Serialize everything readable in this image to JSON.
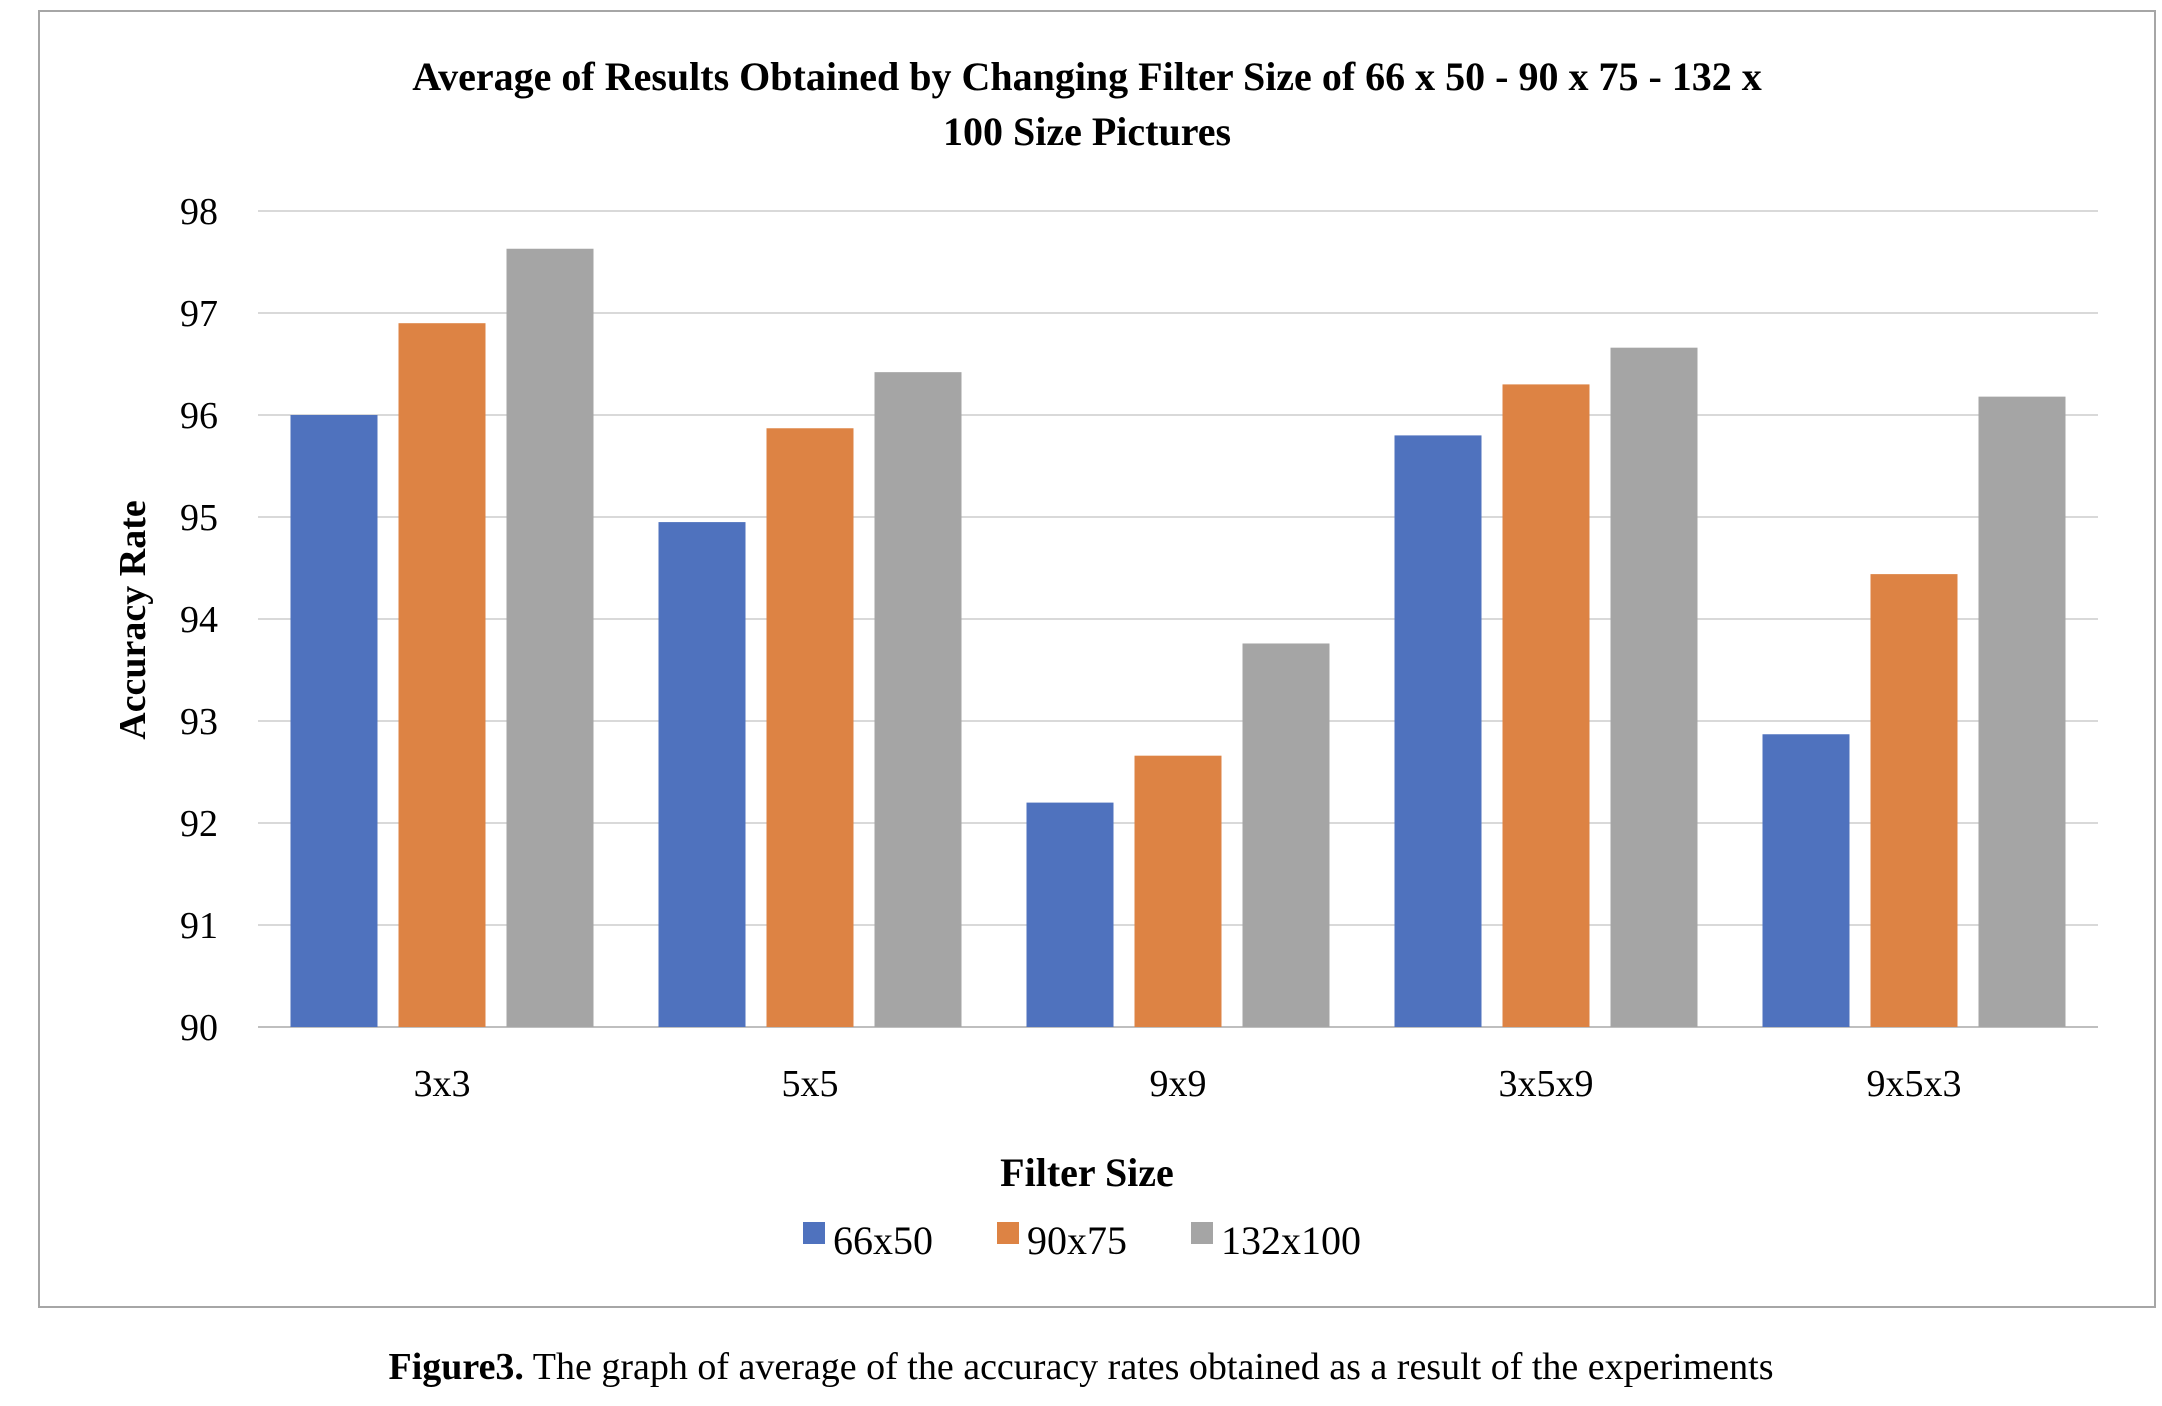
{
  "chart_data": {
    "type": "bar",
    "title": "Average of Results Obtained by Changing Filter Size of 66 x 50 -  90 x 75 - 132 x 100 Size Pictures",
    "title_lines": [
      "Average of Results Obtained by Changing Filter Size of 66 x 50 -  90 x 75 - 132 x",
      "100 Size Pictures"
    ],
    "xlabel": "Filter Size",
    "ylabel": "Accuracy Rate",
    "categories": [
      "3x3",
      "5x5",
      "9x9",
      "3x5x9",
      "9x5x3"
    ],
    "series": [
      {
        "name": "66x50",
        "color": "#4f72be",
        "values": [
          96.0,
          94.95,
          92.2,
          95.8,
          92.87
        ]
      },
      {
        "name": "90x75",
        "color": "#dd8344",
        "values": [
          96.9,
          95.87,
          92.66,
          96.3,
          94.44
        ]
      },
      {
        "name": "132x100",
        "color": "#a5a5a5",
        "values": [
          97.63,
          96.42,
          93.76,
          96.66,
          96.18
        ]
      }
    ],
    "ylim": [
      90,
      98
    ],
    "yticks": [
      90,
      91,
      92,
      93,
      94,
      95,
      96,
      97,
      98
    ],
    "grid": true,
    "legend_position": "bottom"
  },
  "caption": {
    "label": "Figure3.",
    "text": " The graph of average of the accuracy rates obtained as a result of the experiments"
  }
}
